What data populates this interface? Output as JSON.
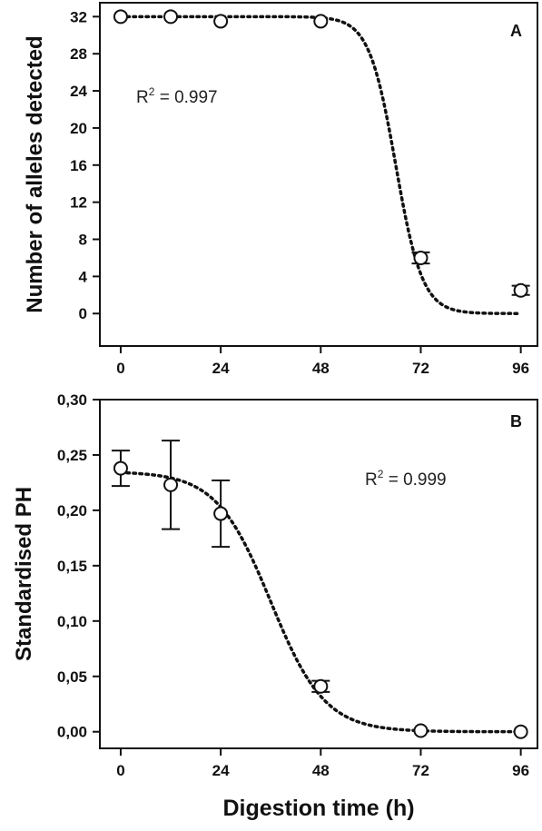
{
  "figure": {
    "x_axis_title": "Digestion time (h)"
  },
  "chart_data": [
    {
      "type": "scatter",
      "panel_label": "A",
      "ylabel": "Number of alleles detected",
      "xlabel": "",
      "x_ticks": [
        "0",
        "24",
        "48",
        "72",
        "96"
      ],
      "y_ticks": [
        "0",
        "4",
        "8",
        "12",
        "16",
        "20",
        "24",
        "28",
        "32"
      ],
      "xlim": [
        -5,
        100
      ],
      "ylim": [
        -3.5,
        33.5
      ],
      "r2_prefix": "R",
      "r2_exp": "2",
      "r2_value": " = 0.997",
      "points": [
        {
          "x": 0,
          "y": 32,
          "err": 0
        },
        {
          "x": 12,
          "y": 32,
          "err": 0
        },
        {
          "x": 24,
          "y": 31.5,
          "err": 0
        },
        {
          "x": 48,
          "y": 31.5,
          "err": 0
        },
        {
          "x": 72,
          "y": 6,
          "err": 0.6
        },
        {
          "x": 96,
          "y": 2.5,
          "err": 0.5
        }
      ],
      "fit": {
        "model": "sigmoid",
        "top": 32,
        "bottom": 0,
        "x50": 66,
        "slope": 3.2,
        "x_start": 0,
        "x_end": 96
      }
    },
    {
      "type": "scatter",
      "panel_label": "B",
      "ylabel": "Standardised PH",
      "xlabel": "Digestion time (h)",
      "x_ticks": [
        "0",
        "24",
        "48",
        "72",
        "96"
      ],
      "y_ticks": [
        "0,00",
        "0,05",
        "0,10",
        "0,15",
        "0,20",
        "0,25",
        "0,30"
      ],
      "xlim": [
        -5,
        100
      ],
      "ylim": [
        -0.015,
        0.3
      ],
      "r2_prefix": "R",
      "r2_exp": "2",
      "r2_value": " = 0.999",
      "points": [
        {
          "x": 0,
          "y": 0.238,
          "err": 0.016
        },
        {
          "x": 12,
          "y": 0.223,
          "err": 0.04
        },
        {
          "x": 24,
          "y": 0.197,
          "err": 0.03
        },
        {
          "x": 48,
          "y": 0.041,
          "err": 0.005
        },
        {
          "x": 72,
          "y": 0.001,
          "err": 0
        },
        {
          "x": 96,
          "y": 0.0,
          "err": 0
        }
      ],
      "fit": {
        "model": "sigmoid",
        "top": 0.235,
        "bottom": 0,
        "x50": 36,
        "slope": 6.5,
        "x_start": 0,
        "x_end": 96
      }
    }
  ]
}
